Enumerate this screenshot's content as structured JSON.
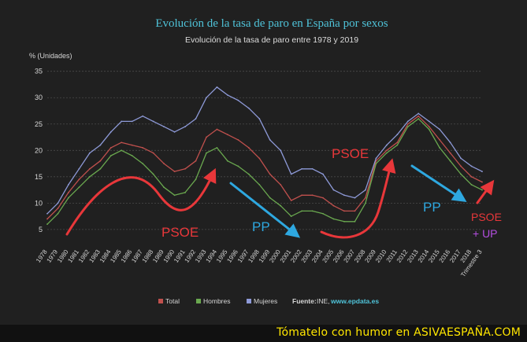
{
  "chart_data": {
    "type": "line",
    "title": "Evolución de la tasa de paro en España por sexos",
    "subtitle": "Evolución de la tasa de paro entre 1978 y 2019",
    "ylabel": "% (Unidades)",
    "ylim": [
      2,
      36
    ],
    "yticks": [
      5,
      10,
      15,
      20,
      25,
      30,
      35
    ],
    "grid": true,
    "legend_position": "bottom",
    "x_tick_labels": [
      "1978",
      "1979",
      "1980",
      "1981",
      "1982",
      "1983",
      "1984",
      "1985",
      "1986",
      "1987",
      "1988",
      "1989",
      "1990",
      "1991",
      "1992",
      "1993",
      "1994",
      "1995",
      "1996",
      "1997",
      "1998",
      "1999",
      "2000",
      "2001",
      "2002",
      "2003",
      "2004",
      "2005",
      "2006",
      "2007",
      "2008",
      "2009",
      "2010",
      "2011",
      "2012",
      "2013",
      "2014",
      "2015",
      "2016",
      "2017",
      "2018",
      "Trimestre 3"
    ],
    "x": [
      1978,
      1979,
      1980,
      1981,
      1982,
      1983,
      1984,
      1985,
      1986,
      1987,
      1988,
      1989,
      1990,
      1991,
      1992,
      1993,
      1994,
      1995,
      1996,
      1997,
      1998,
      1999,
      2000,
      2001,
      2002,
      2003,
      2004,
      2005,
      2006,
      2007,
      2008,
      2009,
      2010,
      2011,
      2012,
      2013,
      2014,
      2015,
      2016,
      2017,
      2018,
      2019
    ],
    "series": [
      {
        "name": "Total",
        "color": "#c0504d",
        "values": [
          7,
          9,
          12,
          14.5,
          16.5,
          18,
          20.5,
          21.5,
          21,
          20.5,
          19.5,
          17.5,
          16,
          16.5,
          18,
          22.5,
          24,
          23,
          22,
          20.5,
          18.5,
          15.5,
          13.5,
          10.5,
          11.5,
          11.5,
          11,
          9.5,
          8.5,
          8.5,
          11,
          18,
          20,
          21.5,
          25,
          26.5,
          24.5,
          22,
          19.5,
          17,
          15,
          14
        ]
      },
      {
        "name": "Hombres",
        "color": "#6aa84f",
        "values": [
          6,
          8,
          11,
          13,
          15,
          16.5,
          19,
          20,
          19,
          17.5,
          15.5,
          13,
          11.5,
          12,
          14.5,
          19.5,
          20.5,
          18,
          17,
          15.5,
          13.5,
          11,
          9.5,
          7.5,
          8.5,
          8.5,
          8,
          7,
          6.5,
          6.5,
          10,
          17.5,
          19.5,
          21,
          24.5,
          26,
          24,
          20.5,
          18,
          15.5,
          13.5,
          12.5
        ]
      },
      {
        "name": "Mujeres",
        "color": "#8e9ad8",
        "values": [
          8,
          10,
          13.5,
          16.5,
          19.5,
          21,
          23.5,
          25.5,
          25.5,
          26.5,
          25.5,
          24.5,
          23.5,
          24.5,
          26,
          30,
          32,
          30.5,
          29.5,
          28,
          26,
          22,
          20,
          15.5,
          16.5,
          16.5,
          15.5,
          12.5,
          11.5,
          11,
          12.5,
          18.5,
          21,
          23,
          25.5,
          27,
          25.5,
          24,
          21.5,
          18.5,
          17,
          16
        ]
      }
    ],
    "annotations": [
      {
        "text": "PSOE",
        "color": "#e8373a"
      },
      {
        "text": "PP",
        "color": "#2ea8e0"
      },
      {
        "text": "PSOE",
        "color": "#e8373a"
      },
      {
        "text": "PP",
        "color": "#2ea8e0"
      },
      {
        "text": "PSOE",
        "color": "#e8373a"
      },
      {
        "text": "+ UP",
        "color": "#b44ee0"
      }
    ],
    "source_label": "Fuente:",
    "source_text": "INE,",
    "source_link": "www.epdata.es"
  },
  "footer": {
    "text": "Tómatelo con humor en",
    "site": "ASIVAESPAÑA.COM"
  },
  "colors": {
    "background": "#202020",
    "title": "#4fc3d9",
    "grid": "#4a4a4a",
    "axis_text": "#d6d6d6",
    "arrow_red": "#e8373a",
    "arrow_blue": "#2ea8e0",
    "link": "#4fc3d9"
  }
}
